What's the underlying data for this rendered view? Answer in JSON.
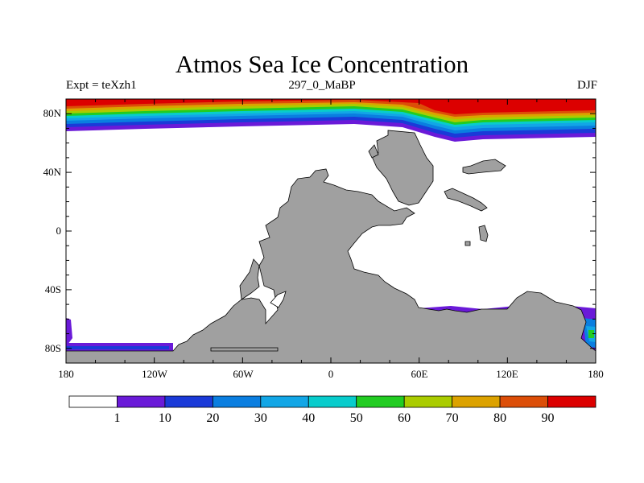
{
  "title": "Atmos Sea Ice Concentration",
  "subtitle_left": "Expt = teXzh1",
  "subtitle_center": "297_0_MaBP",
  "subtitle_right": "DJF",
  "lat_ticks": [
    "80N",
    "40N",
    "0",
    "40S",
    "80S"
  ],
  "lon_ticks": [
    "180",
    "120W",
    "60W",
    "0",
    "60E",
    "120E",
    "180"
  ],
  "colorbar": {
    "colors": [
      "#ffffff",
      "#6a1ad8",
      "#1a3ad8",
      "#0a7ee0",
      "#12a6e6",
      "#08cccc",
      "#22cc22",
      "#aacc00",
      "#dca200",
      "#dc4e08",
      "#dc0000"
    ],
    "labels": [
      "1",
      "10",
      "20",
      "30",
      "40",
      "50",
      "60",
      "70",
      "80",
      "90"
    ]
  },
  "colors": {
    "land": "#a0a0a0",
    "ocean": "#ffffff"
  }
}
